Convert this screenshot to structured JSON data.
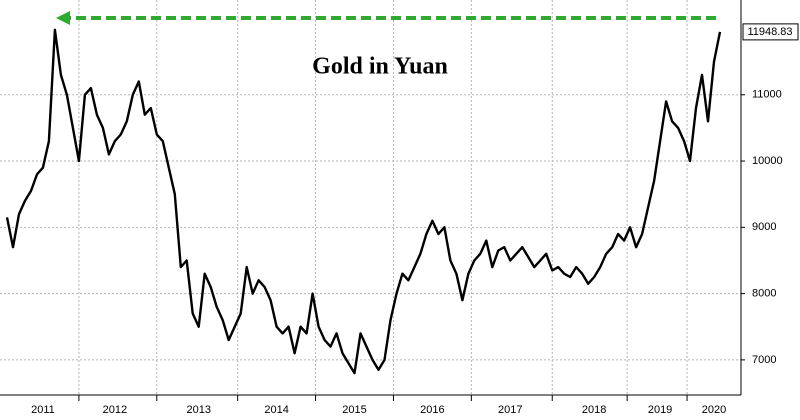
{
  "chart_data": {
    "type": "line",
    "title": "Gold in Yuan",
    "color": "#000000",
    "categories": [
      null,
      null,
      null,
      null,
      null,
      null,
      "2011",
      null,
      null,
      null,
      null,
      null,
      null,
      null,
      null,
      null,
      null,
      null,
      "2012",
      null,
      null,
      null,
      null,
      null,
      null,
      null,
      null,
      null,
      null,
      null,
      null,
      null,
      "2013",
      null,
      null,
      null,
      null,
      null,
      null,
      null,
      null,
      null,
      null,
      null,
      null,
      "2014",
      null,
      null,
      null,
      null,
      null,
      null,
      null,
      null,
      null,
      null,
      null,
      null,
      "2015",
      null,
      null,
      null,
      null,
      null,
      null,
      null,
      null,
      null,
      null,
      null,
      null,
      "2016",
      null,
      null,
      null,
      null,
      null,
      null,
      null,
      null,
      null,
      null,
      null,
      null,
      "2017",
      null,
      null,
      null,
      null,
      null,
      null,
      null,
      null,
      null,
      null,
      null,
      null,
      null,
      "2018",
      null,
      null,
      null,
      null,
      null,
      null,
      null,
      null,
      null,
      null,
      "2019",
      null,
      null,
      null,
      null,
      null,
      null,
      null,
      null,
      "2020",
      null
    ],
    "values": [
      9150,
      8700,
      9200,
      9400,
      9550,
      9800,
      9900,
      10300,
      11980,
      11300,
      11000,
      10500,
      10000,
      11000,
      11100,
      10700,
      10500,
      10100,
      10300,
      10400,
      10600,
      11000,
      11200,
      10700,
      10800,
      10400,
      10300,
      9900,
      9500,
      8400,
      8500,
      7700,
      7500,
      8300,
      8100,
      7800,
      7600,
      7300,
      7500,
      7700,
      8400,
      8000,
      8200,
      8100,
      7900,
      7500,
      7400,
      7500,
      7100,
      7500,
      7400,
      8000,
      7500,
      7300,
      7200,
      7400,
      7100,
      6950,
      6800,
      7400,
      7200,
      7000,
      6850,
      7000,
      7600,
      8000,
      8300,
      8200,
      8400,
      8600,
      8900,
      9100,
      8900,
      9000,
      8500,
      8300,
      7900,
      8300,
      8500,
      8600,
      8800,
      8400,
      8650,
      8700,
      8500,
      8600,
      8700,
      8550,
      8400,
      8500,
      8600,
      8350,
      8400,
      8300,
      8250,
      8400,
      8300,
      8150,
      8250,
      8400,
      8600,
      8700,
      8900,
      8800,
      9000,
      8700,
      8900,
      9300,
      9700,
      10300,
      10900,
      10600,
      10500,
      10300,
      10000,
      10800,
      11300,
      10600,
      11500,
      11948.83
    ],
    "ylim": [
      6470,
      12430
    ],
    "yticks": [
      7000,
      8000,
      9000,
      10000,
      11000
    ],
    "grid": true
  }
}
